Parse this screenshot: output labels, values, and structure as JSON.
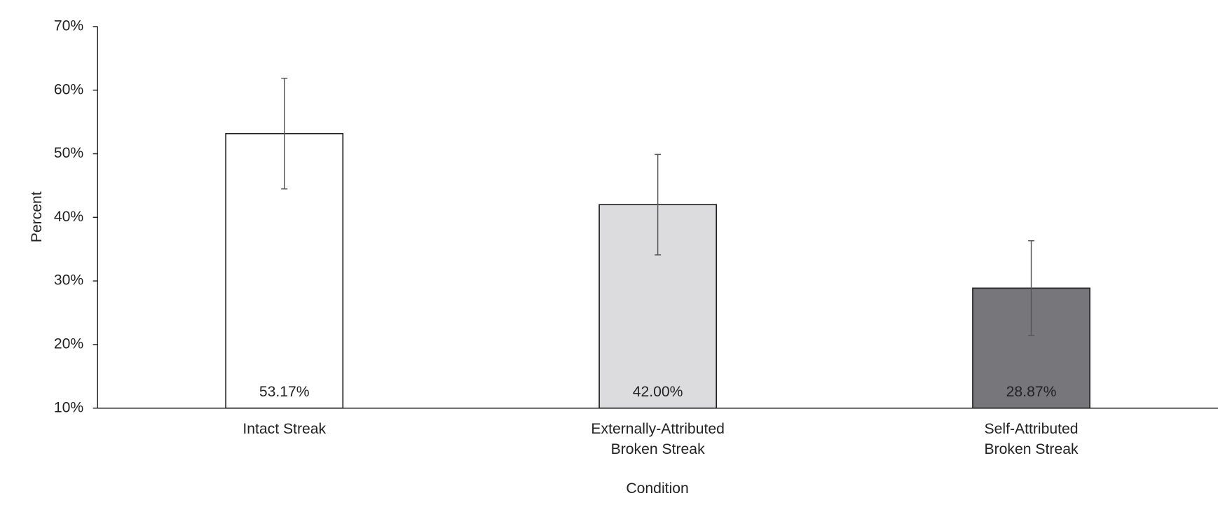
{
  "chart_data": {
    "type": "bar",
    "x_label": "Condition",
    "y_label": "Percent",
    "categories": [
      "Intact Streak",
      "Externally-Attributed\nBroken Streak",
      "Self-Attributed\nBroken Streak"
    ],
    "values": [
      53.17,
      42.0,
      28.87
    ],
    "value_labels": [
      "53.17%",
      "42.00%",
      "28.87%"
    ],
    "errors": [
      8.7,
      7.9,
      7.45
    ],
    "colors": [
      "#ffffff",
      "#dcdcde",
      "#77777b"
    ],
    "ylim": [
      10,
      70
    ],
    "yticks": [
      {
        "value": 10,
        "label": "10%"
      },
      {
        "value": 20,
        "label": "20%"
      },
      {
        "value": 30,
        "label": "30%"
      },
      {
        "value": 40,
        "label": "40%"
      },
      {
        "value": 50,
        "label": "50%"
      },
      {
        "value": 60,
        "label": "60%"
      },
      {
        "value": 70,
        "label": "70%"
      }
    ],
    "grid": false
  }
}
